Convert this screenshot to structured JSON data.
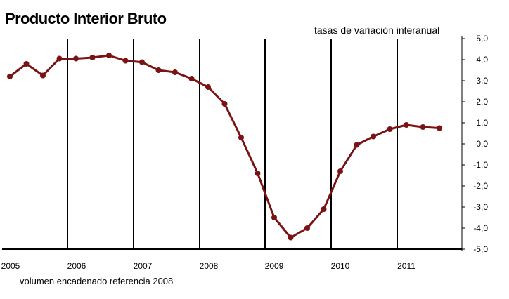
{
  "chart_data": {
    "type": "line",
    "title": "Producto Interior Bruto",
    "subtitle": "tasas de variación interanual",
    "note": "volumen encadenado referencia 2008",
    "x_tick_labels": [
      "2005",
      "2006",
      "2007",
      "2008",
      "2009",
      "2010",
      "2011"
    ],
    "y_tick_labels": [
      "5,0",
      "4,0",
      "3,0",
      "2,0",
      "1,0",
      "0,0",
      "-1,0",
      "-2,0",
      "-3,0",
      "-4,0",
      "-5,0"
    ],
    "ylim": [
      -5,
      5
    ],
    "grid": "vertical lines at years",
    "y_axis_side": "right",
    "series": [
      {
        "color": "#7a1414",
        "x": [
          "2005 Q1",
          "2005 Q2",
          "2005 Q3",
          "2005 Q4",
          "2006 Q1",
          "2006 Q2",
          "2006 Q3",
          "2006 Q4",
          "2007 Q1",
          "2007 Q2",
          "2007 Q3",
          "2007 Q4",
          "2008 Q1",
          "2008 Q2",
          "2008 Q3",
          "2008 Q4",
          "2009 Q1",
          "2009 Q2",
          "2009 Q3",
          "2009 Q4",
          "2010 Q1",
          "2010 Q2",
          "2010 Q3",
          "2010 Q4",
          "2011 Q1",
          "2011 Q2",
          "2011 Q3"
        ],
        "values": [
          3.2,
          3.8,
          3.25,
          4.05,
          4.05,
          4.1,
          4.2,
          3.95,
          3.88,
          3.5,
          3.4,
          3.1,
          2.7,
          1.9,
          0.3,
          -1.4,
          -3.5,
          -4.45,
          -4.0,
          -3.1,
          -1.3,
          -0.05,
          0.35,
          0.7,
          0.9,
          0.8,
          0.75
        ]
      }
    ]
  }
}
